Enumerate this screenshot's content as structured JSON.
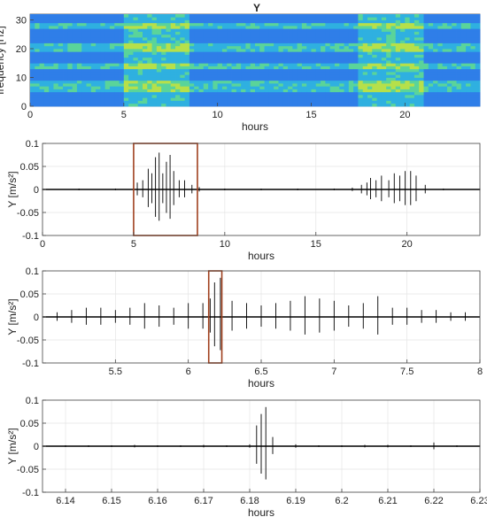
{
  "figure": {
    "title": "Y"
  },
  "chart_data": [
    {
      "type": "heatmap",
      "title": "Y",
      "xlabel": "hours",
      "ylabel": "frequency [Hz]",
      "xlim": [
        0,
        24
      ],
      "ylim": [
        0,
        32
      ],
      "xticks": [
        0,
        5,
        10,
        15,
        20
      ],
      "yticks": [
        0,
        10,
        20,
        30
      ],
      "grid": false,
      "colormap": [
        "#2a4fd6",
        "#2f7ee8",
        "#2fb0e0",
        "#5ad49a",
        "#b6e04a",
        "#f2d23a"
      ],
      "frequency_bands_hz": [
        6,
        8,
        14,
        20.5,
        28
      ],
      "activity_windows_hours": [
        [
          5,
          8.5
        ],
        [
          17.5,
          21
        ]
      ]
    },
    {
      "type": "line",
      "xlabel": "hours",
      "ylabel": "Y [m/s²]",
      "xlim": [
        0,
        24
      ],
      "ylim": [
        -0.1,
        0.1
      ],
      "xticks": [
        0,
        5,
        10,
        15,
        20
      ],
      "yticks": [
        0.1,
        0.05,
        0,
        -0.05,
        -0.1
      ],
      "grid": true,
      "color": "#000000",
      "series": [
        {
          "x": [
            0,
            2,
            4,
            5,
            5.2,
            5.5,
            5.8,
            6.0,
            6.2,
            6.4,
            6.6,
            6.8,
            7.0,
            7.2,
            7.5,
            7.8,
            8.2,
            8.6,
            10,
            12,
            14,
            16,
            17,
            17.5,
            17.8,
            18,
            18.3,
            18.6,
            19,
            19.3,
            19.6,
            19.9,
            20.2,
            20.5,
            21,
            22,
            24
          ],
          "y": [
            0.002,
            0.002,
            0.002,
            0.004,
            0.015,
            0.02,
            0.045,
            -0.035,
            0.07,
            -0.08,
            0.035,
            0.06,
            -0.075,
            0.04,
            0.02,
            -0.02,
            0.01,
            0.005,
            0.002,
            0.002,
            0.002,
            0.002,
            0.004,
            0.01,
            0.015,
            0.025,
            -0.02,
            0.03,
            0.02,
            0.035,
            -0.03,
            0.04,
            -0.04,
            0.03,
            0.01,
            0.002,
            0.002
          ]
        }
      ],
      "highlight_box": {
        "x": [
          5,
          8.5
        ],
        "y": [
          -0.1,
          0.1
        ],
        "color": "#a0401e"
      }
    },
    {
      "type": "line",
      "xlabel": "hours",
      "ylabel": "Y [m/s²]",
      "xlim": [
        5,
        8
      ],
      "ylim": [
        -0.1,
        0.1
      ],
      "xticks": [
        5.5,
        6,
        6.5,
        7,
        7.5,
        8
      ],
      "yticks": [
        0.1,
        0.05,
        0,
        -0.05,
        -0.1
      ],
      "grid": true,
      "color": "#000000",
      "series": [
        {
          "x": [
            5.1,
            5.2,
            5.3,
            5.4,
            5.5,
            5.6,
            5.7,
            5.8,
            5.9,
            6.0,
            6.1,
            6.15,
            6.18,
            6.22,
            6.3,
            6.4,
            6.5,
            6.6,
            6.7,
            6.8,
            6.9,
            7.0,
            7.1,
            7.2,
            7.3,
            7.4,
            7.5,
            7.6,
            7.7,
            7.8,
            7.9
          ],
          "y": [
            0.01,
            -0.015,
            0.02,
            -0.02,
            0.015,
            0.02,
            -0.03,
            0.025,
            -0.02,
            0.03,
            -0.03,
            0.04,
            0.075,
            -0.085,
            0.035,
            -0.03,
            0.025,
            0.03,
            -0.035,
            0.045,
            -0.04,
            0.035,
            -0.025,
            0.03,
            0.045,
            -0.02,
            0.02,
            0.015,
            -0.015,
            0.01,
            0.01
          ]
        }
      ],
      "highlight_box": {
        "x": [
          6.14,
          6.23
        ],
        "y": [
          -0.1,
          0.1
        ],
        "color": "#a0401e"
      }
    },
    {
      "type": "line",
      "xlabel": "hours",
      "ylabel": "Y [m/s²]",
      "xlim": [
        6.135,
        6.23
      ],
      "ylim": [
        -0.1,
        0.1
      ],
      "xticks": [
        6.14,
        6.15,
        6.16,
        6.17,
        6.18,
        6.19,
        6.2,
        6.21,
        6.22,
        6.23
      ],
      "yticks": [
        0.1,
        0.05,
        0,
        -0.05,
        -0.1
      ],
      "grid": true,
      "color": "#000000",
      "series": [
        {
          "x": [
            6.135,
            6.14,
            6.145,
            6.15,
            6.155,
            6.16,
            6.165,
            6.17,
            6.175,
            6.18,
            6.1815,
            6.1825,
            6.1835,
            6.185,
            6.19,
            6.195,
            6.2,
            6.205,
            6.21,
            6.215,
            6.22,
            6.225,
            6.23
          ],
          "y": [
            0.001,
            0.002,
            0.002,
            0.002,
            0.003,
            0.002,
            0.002,
            0.003,
            0.002,
            0.004,
            0.045,
            0.07,
            -0.085,
            0.02,
            0.004,
            0.002,
            0.002,
            0.003,
            0.003,
            0.002,
            0.008,
            0.002,
            0.001
          ]
        }
      ]
    }
  ]
}
